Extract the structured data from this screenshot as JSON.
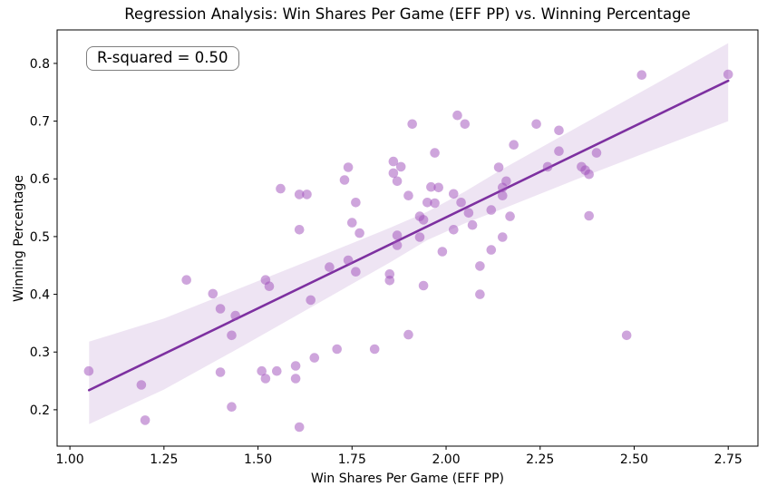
{
  "title": "Regression Analysis: Win Shares Per Game (EFF PP) vs. Winning Percentage",
  "annotation": "R-squared = 0.50",
  "chart_data": {
    "type": "scatter",
    "title": "Regression Analysis: Win Shares Per Game (EFF PP) vs. Winning Percentage",
    "xlabel": "Win Shares Per Game (EFF PP)",
    "ylabel": "Winning Percentage",
    "xlim": [
      0.966,
      2.829
    ],
    "ylim": [
      0.137,
      0.858
    ],
    "grid": false,
    "legend_position": "none",
    "x_ticks": [
      1.0,
      1.25,
      1.5,
      1.75,
      2.0,
      2.25,
      2.5,
      2.75
    ],
    "x_tick_labels": [
      "1.00",
      "1.25",
      "1.50",
      "1.75",
      "2.00",
      "2.25",
      "2.50",
      "2.75"
    ],
    "y_ticks": [
      0.2,
      0.3,
      0.4,
      0.5,
      0.6,
      0.7,
      0.8
    ],
    "y_tick_labels": [
      "0.2",
      "0.3",
      "0.4",
      "0.5",
      "0.6",
      "0.7",
      "0.8"
    ],
    "r_squared": 0.5,
    "colors": {
      "scatter": "rgba(158,75,186,0.5)",
      "line": "#7d30a0",
      "band": "rgba(125,48,160,0.13)",
      "spine": "#000000",
      "text": "#000000"
    },
    "marker_radius": 5.3,
    "points": [
      [
        1.05,
        0.267
      ],
      [
        1.19,
        0.243
      ],
      [
        1.2,
        0.182
      ],
      [
        1.31,
        0.425
      ],
      [
        1.38,
        0.401
      ],
      [
        1.4,
        0.375
      ],
      [
        1.4,
        0.265
      ],
      [
        1.43,
        0.205
      ],
      [
        1.43,
        0.329
      ],
      [
        1.44,
        0.363
      ],
      [
        1.51,
        0.267
      ],
      [
        1.52,
        0.254
      ],
      [
        1.52,
        0.425
      ],
      [
        1.53,
        0.414
      ],
      [
        1.55,
        0.267
      ],
      [
        1.56,
        0.583
      ],
      [
        1.6,
        0.276
      ],
      [
        1.6,
        0.254
      ],
      [
        1.61,
        0.17
      ],
      [
        1.61,
        0.512
      ],
      [
        1.61,
        0.573
      ],
      [
        1.63,
        0.573
      ],
      [
        1.64,
        0.39
      ],
      [
        1.65,
        0.29
      ],
      [
        1.69,
        0.447
      ],
      [
        1.71,
        0.305
      ],
      [
        1.73,
        0.598
      ],
      [
        1.74,
        0.62
      ],
      [
        1.74,
        0.459
      ],
      [
        1.75,
        0.524
      ],
      [
        1.76,
        0.439
      ],
      [
        1.76,
        0.559
      ],
      [
        1.77,
        0.506
      ],
      [
        1.81,
        0.305
      ],
      [
        1.85,
        0.435
      ],
      [
        1.85,
        0.424
      ],
      [
        1.86,
        0.63
      ],
      [
        1.86,
        0.61
      ],
      [
        1.87,
        0.596
      ],
      [
        1.87,
        0.502
      ],
      [
        1.87,
        0.485
      ],
      [
        1.88,
        0.621
      ],
      [
        1.9,
        0.571
      ],
      [
        1.9,
        0.33
      ],
      [
        1.91,
        0.695
      ],
      [
        1.93,
        0.535
      ],
      [
        1.93,
        0.499
      ],
      [
        1.94,
        0.529
      ],
      [
        1.94,
        0.415
      ],
      [
        1.95,
        0.559
      ],
      [
        1.96,
        0.586
      ],
      [
        1.97,
        0.558
      ],
      [
        1.97,
        0.645
      ],
      [
        1.98,
        0.585
      ],
      [
        1.99,
        0.474
      ],
      [
        2.02,
        0.512
      ],
      [
        2.02,
        0.574
      ],
      [
        2.03,
        0.71
      ],
      [
        2.04,
        0.559
      ],
      [
        2.05,
        0.695
      ],
      [
        2.06,
        0.541
      ],
      [
        2.07,
        0.52
      ],
      [
        2.09,
        0.449
      ],
      [
        2.09,
        0.4
      ],
      [
        2.12,
        0.477
      ],
      [
        2.12,
        0.546
      ],
      [
        2.14,
        0.62
      ],
      [
        2.15,
        0.499
      ],
      [
        2.15,
        0.585
      ],
      [
        2.15,
        0.571
      ],
      [
        2.16,
        0.596
      ],
      [
        2.17,
        0.535
      ],
      [
        2.18,
        0.659
      ],
      [
        2.24,
        0.695
      ],
      [
        2.27,
        0.621
      ],
      [
        2.3,
        0.684
      ],
      [
        2.3,
        0.648
      ],
      [
        2.36,
        0.621
      ],
      [
        2.37,
        0.615
      ],
      [
        2.38,
        0.608
      ],
      [
        2.38,
        0.536
      ],
      [
        2.4,
        0.645
      ],
      [
        2.48,
        0.329
      ],
      [
        2.52,
        0.78
      ],
      [
        2.75,
        0.781
      ]
    ],
    "regression_line": {
      "x": [
        1.051,
        2.75
      ],
      "y": [
        0.234,
        0.77
      ]
    },
    "confidence_band": [
      [
        1.051,
        0.175,
        0.318
      ],
      [
        1.25,
        0.235,
        0.358
      ],
      [
        1.45,
        0.307,
        0.41
      ],
      [
        1.65,
        0.381,
        0.462
      ],
      [
        1.85,
        0.455,
        0.515
      ],
      [
        1.95,
        0.494,
        0.543
      ],
      [
        2.05,
        0.523,
        0.578
      ],
      [
        2.15,
        0.548,
        0.617
      ],
      [
        2.35,
        0.6,
        0.69
      ],
      [
        2.55,
        0.65,
        0.762
      ],
      [
        2.75,
        0.7,
        0.835
      ]
    ]
  }
}
